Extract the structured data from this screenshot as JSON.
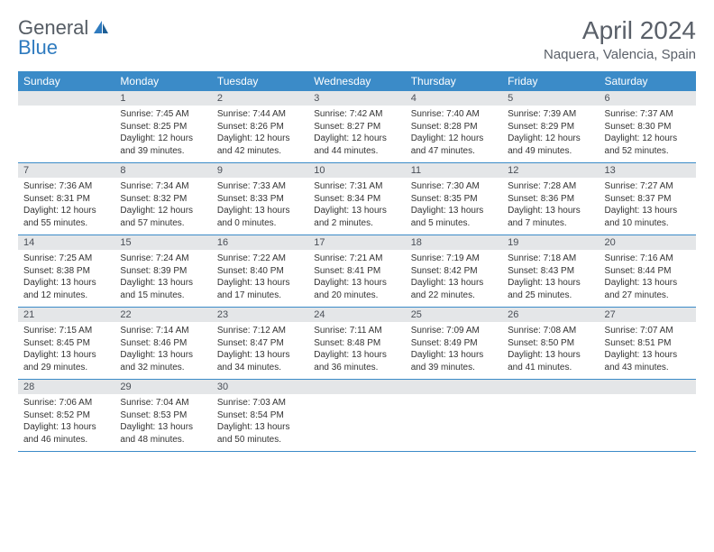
{
  "brand": {
    "general": "General",
    "blue": "Blue"
  },
  "title": "April 2024",
  "location": "Naquera, Valencia, Spain",
  "colors": {
    "header_bg": "#3b8bc8",
    "header_fg": "#ffffff",
    "daynum_bg": "#e4e6e8",
    "row_divider": "#3b8bc8",
    "title_color": "#5a6069",
    "logo_gray": "#555c64",
    "logo_blue": "#2f7bbf"
  },
  "weekdays": [
    "Sunday",
    "Monday",
    "Tuesday",
    "Wednesday",
    "Thursday",
    "Friday",
    "Saturday"
  ],
  "weeks": [
    {
      "nums": [
        "",
        "1",
        "2",
        "3",
        "4",
        "5",
        "6"
      ],
      "cells": [
        {
          "sunrise": "",
          "sunset": "",
          "daylight": ""
        },
        {
          "sunrise": "Sunrise: 7:45 AM",
          "sunset": "Sunset: 8:25 PM",
          "daylight": "Daylight: 12 hours and 39 minutes."
        },
        {
          "sunrise": "Sunrise: 7:44 AM",
          "sunset": "Sunset: 8:26 PM",
          "daylight": "Daylight: 12 hours and 42 minutes."
        },
        {
          "sunrise": "Sunrise: 7:42 AM",
          "sunset": "Sunset: 8:27 PM",
          "daylight": "Daylight: 12 hours and 44 minutes."
        },
        {
          "sunrise": "Sunrise: 7:40 AM",
          "sunset": "Sunset: 8:28 PM",
          "daylight": "Daylight: 12 hours and 47 minutes."
        },
        {
          "sunrise": "Sunrise: 7:39 AM",
          "sunset": "Sunset: 8:29 PM",
          "daylight": "Daylight: 12 hours and 49 minutes."
        },
        {
          "sunrise": "Sunrise: 7:37 AM",
          "sunset": "Sunset: 8:30 PM",
          "daylight": "Daylight: 12 hours and 52 minutes."
        }
      ]
    },
    {
      "nums": [
        "7",
        "8",
        "9",
        "10",
        "11",
        "12",
        "13"
      ],
      "cells": [
        {
          "sunrise": "Sunrise: 7:36 AM",
          "sunset": "Sunset: 8:31 PM",
          "daylight": "Daylight: 12 hours and 55 minutes."
        },
        {
          "sunrise": "Sunrise: 7:34 AM",
          "sunset": "Sunset: 8:32 PM",
          "daylight": "Daylight: 12 hours and 57 minutes."
        },
        {
          "sunrise": "Sunrise: 7:33 AM",
          "sunset": "Sunset: 8:33 PM",
          "daylight": "Daylight: 13 hours and 0 minutes."
        },
        {
          "sunrise": "Sunrise: 7:31 AM",
          "sunset": "Sunset: 8:34 PM",
          "daylight": "Daylight: 13 hours and 2 minutes."
        },
        {
          "sunrise": "Sunrise: 7:30 AM",
          "sunset": "Sunset: 8:35 PM",
          "daylight": "Daylight: 13 hours and 5 minutes."
        },
        {
          "sunrise": "Sunrise: 7:28 AM",
          "sunset": "Sunset: 8:36 PM",
          "daylight": "Daylight: 13 hours and 7 minutes."
        },
        {
          "sunrise": "Sunrise: 7:27 AM",
          "sunset": "Sunset: 8:37 PM",
          "daylight": "Daylight: 13 hours and 10 minutes."
        }
      ]
    },
    {
      "nums": [
        "14",
        "15",
        "16",
        "17",
        "18",
        "19",
        "20"
      ],
      "cells": [
        {
          "sunrise": "Sunrise: 7:25 AM",
          "sunset": "Sunset: 8:38 PM",
          "daylight": "Daylight: 13 hours and 12 minutes."
        },
        {
          "sunrise": "Sunrise: 7:24 AM",
          "sunset": "Sunset: 8:39 PM",
          "daylight": "Daylight: 13 hours and 15 minutes."
        },
        {
          "sunrise": "Sunrise: 7:22 AM",
          "sunset": "Sunset: 8:40 PM",
          "daylight": "Daylight: 13 hours and 17 minutes."
        },
        {
          "sunrise": "Sunrise: 7:21 AM",
          "sunset": "Sunset: 8:41 PM",
          "daylight": "Daylight: 13 hours and 20 minutes."
        },
        {
          "sunrise": "Sunrise: 7:19 AM",
          "sunset": "Sunset: 8:42 PM",
          "daylight": "Daylight: 13 hours and 22 minutes."
        },
        {
          "sunrise": "Sunrise: 7:18 AM",
          "sunset": "Sunset: 8:43 PM",
          "daylight": "Daylight: 13 hours and 25 minutes."
        },
        {
          "sunrise": "Sunrise: 7:16 AM",
          "sunset": "Sunset: 8:44 PM",
          "daylight": "Daylight: 13 hours and 27 minutes."
        }
      ]
    },
    {
      "nums": [
        "21",
        "22",
        "23",
        "24",
        "25",
        "26",
        "27"
      ],
      "cells": [
        {
          "sunrise": "Sunrise: 7:15 AM",
          "sunset": "Sunset: 8:45 PM",
          "daylight": "Daylight: 13 hours and 29 minutes."
        },
        {
          "sunrise": "Sunrise: 7:14 AM",
          "sunset": "Sunset: 8:46 PM",
          "daylight": "Daylight: 13 hours and 32 minutes."
        },
        {
          "sunrise": "Sunrise: 7:12 AM",
          "sunset": "Sunset: 8:47 PM",
          "daylight": "Daylight: 13 hours and 34 minutes."
        },
        {
          "sunrise": "Sunrise: 7:11 AM",
          "sunset": "Sunset: 8:48 PM",
          "daylight": "Daylight: 13 hours and 36 minutes."
        },
        {
          "sunrise": "Sunrise: 7:09 AM",
          "sunset": "Sunset: 8:49 PM",
          "daylight": "Daylight: 13 hours and 39 minutes."
        },
        {
          "sunrise": "Sunrise: 7:08 AM",
          "sunset": "Sunset: 8:50 PM",
          "daylight": "Daylight: 13 hours and 41 minutes."
        },
        {
          "sunrise": "Sunrise: 7:07 AM",
          "sunset": "Sunset: 8:51 PM",
          "daylight": "Daylight: 13 hours and 43 minutes."
        }
      ]
    },
    {
      "nums": [
        "28",
        "29",
        "30",
        "",
        "",
        "",
        ""
      ],
      "cells": [
        {
          "sunrise": "Sunrise: 7:06 AM",
          "sunset": "Sunset: 8:52 PM",
          "daylight": "Daylight: 13 hours and 46 minutes."
        },
        {
          "sunrise": "Sunrise: 7:04 AM",
          "sunset": "Sunset: 8:53 PM",
          "daylight": "Daylight: 13 hours and 48 minutes."
        },
        {
          "sunrise": "Sunrise: 7:03 AM",
          "sunset": "Sunset: 8:54 PM",
          "daylight": "Daylight: 13 hours and 50 minutes."
        },
        {
          "sunrise": "",
          "sunset": "",
          "daylight": ""
        },
        {
          "sunrise": "",
          "sunset": "",
          "daylight": ""
        },
        {
          "sunrise": "",
          "sunset": "",
          "daylight": ""
        },
        {
          "sunrise": "",
          "sunset": "",
          "daylight": ""
        }
      ]
    }
  ]
}
